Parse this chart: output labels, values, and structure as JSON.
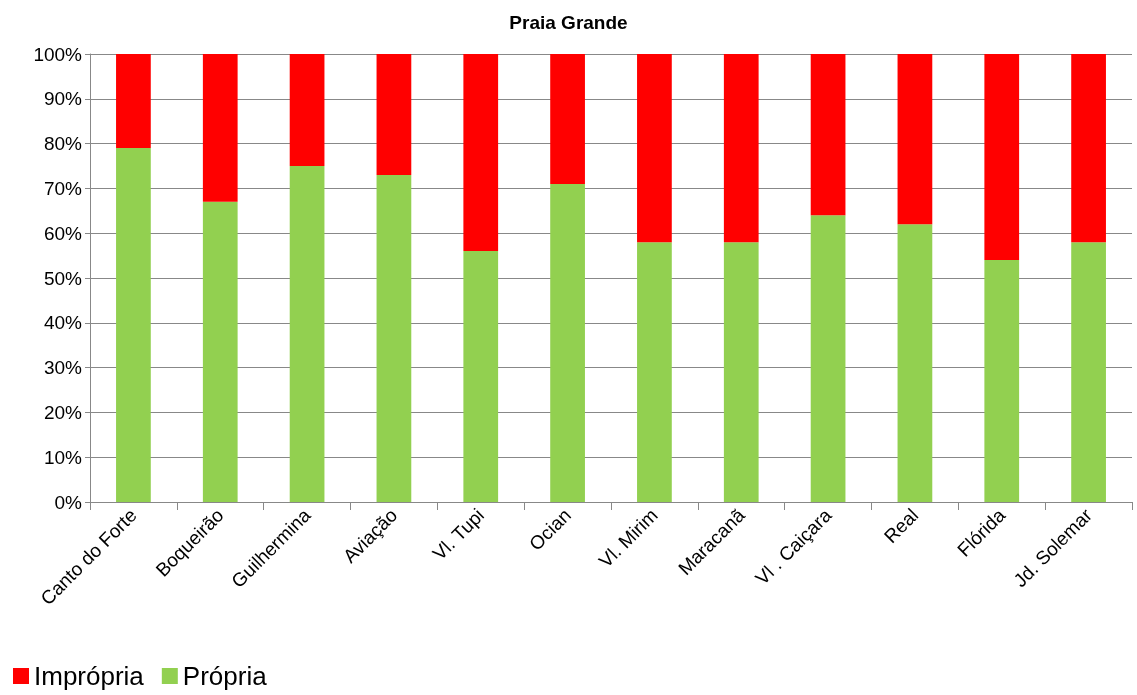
{
  "chart_data": {
    "type": "bar",
    "title": "Praia Grande",
    "stacked": true,
    "categories": [
      "Canto do Forte",
      "Boqueirão",
      "Guilhermina",
      "Aviação",
      "Vl. Tupi",
      "Ocian",
      "Vl. Mirim",
      "Maracanã",
      "Vl . Caiçara",
      "Real",
      "Flórida",
      "Jd. Solemar"
    ],
    "series": [
      {
        "name": "Própria",
        "color": "#92d050",
        "values": [
          79,
          67,
          75,
          73,
          56,
          71,
          58,
          58,
          64,
          62,
          54,
          58
        ]
      },
      {
        "name": "Imprópria",
        "color": "#ff0000",
        "values": [
          21,
          33,
          25,
          27,
          44,
          29,
          42,
          42,
          36,
          38,
          46,
          42
        ]
      }
    ],
    "ylim": [
      0,
      100
    ],
    "yticks": [
      {
        "value": 0,
        "label": "0%"
      },
      {
        "value": 10,
        "label": "10%"
      },
      {
        "value": 20,
        "label": "20%"
      },
      {
        "value": 30,
        "label": "30%"
      },
      {
        "value": 40,
        "label": "40%"
      },
      {
        "value": 50,
        "label": "50%"
      },
      {
        "value": 60,
        "label": "60%"
      },
      {
        "value": 70,
        "label": "70%"
      },
      {
        "value": 80,
        "label": "80%"
      },
      {
        "value": 90,
        "label": "90%"
      },
      {
        "value": 100,
        "label": "100%"
      }
    ],
    "grid": "y",
    "legend": "bottom left"
  }
}
